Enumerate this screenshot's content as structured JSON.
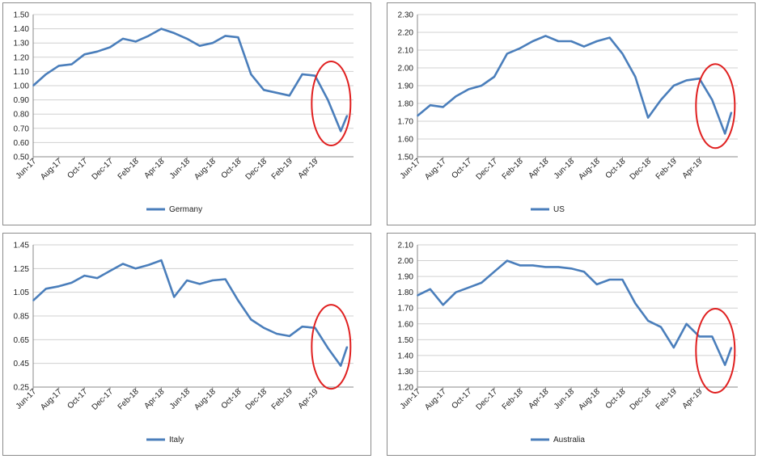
{
  "chart_data": [
    {
      "type": "line",
      "series": [
        {
          "name": "Germany",
          "color": "#4a7ebb"
        }
      ],
      "ylim": [
        0.5,
        1.5
      ],
      "ytick_labels": [
        "0.50",
        "0.60",
        "0.70",
        "0.80",
        "0.90",
        "1.00",
        "1.10",
        "1.20",
        "1.30",
        "1.40",
        "1.50"
      ],
      "xtick_labels": [
        "Jun-17",
        "Aug-17",
        "Oct-17",
        "Dec-17",
        "Feb-18",
        "Apr-18",
        "Jun-18",
        "Aug-18",
        "Oct-18",
        "Dec-18",
        "Feb-19",
        "Apr-19"
      ],
      "grid": true,
      "legend": "bottom",
      "highlight": {
        "shape": "red-ellipse",
        "around": "May-19 to Jun-19 decline"
      },
      "points": [
        [
          "Jun-17",
          1.0
        ],
        [
          "Jul-17",
          1.08
        ],
        [
          "Aug-17",
          1.14
        ],
        [
          "Sep-17",
          1.15
        ],
        [
          "Oct-17",
          1.22
        ],
        [
          "Nov-17",
          1.24
        ],
        [
          "Dec-17",
          1.27
        ],
        [
          "Jan-18",
          1.33
        ],
        [
          "Feb-18",
          1.31
        ],
        [
          "Mar-18",
          1.35
        ],
        [
          "Apr-18",
          1.4
        ],
        [
          "May-18",
          1.37
        ],
        [
          "Jun-18",
          1.33
        ],
        [
          "Jul-18",
          1.28
        ],
        [
          "Aug-18",
          1.3
        ],
        [
          "Sep-18",
          1.35
        ],
        [
          "Oct-18",
          1.34
        ],
        [
          "Nov-18",
          1.08
        ],
        [
          "Dec-18",
          0.97
        ],
        [
          "Jan-19",
          0.95
        ],
        [
          "Feb-19",
          0.93
        ],
        [
          "Mar-19",
          1.08
        ],
        [
          "Apr-19",
          1.07
        ],
        [
          "May-19",
          0.9
        ],
        [
          "Jun-19",
          0.68
        ],
        [
          "Jun-19b",
          0.79
        ]
      ]
    },
    {
      "type": "line",
      "series": [
        {
          "name": "US",
          "color": "#4a7ebb"
        }
      ],
      "ylim": [
        1.5,
        2.3
      ],
      "ytick_labels": [
        "1.50",
        "1.60",
        "1.70",
        "1.80",
        "1.90",
        "2.00",
        "2.10",
        "2.20",
        "2.30"
      ],
      "xtick_labels": [
        "Jun-17",
        "Aug-17",
        "Oct-17",
        "Dec-17",
        "Feb-18",
        "Apr-18",
        "Jun-18",
        "Aug-18",
        "Oct-18",
        "Dec-18",
        "Feb-19",
        "Apr-19"
      ],
      "grid": true,
      "legend": "bottom",
      "highlight": {
        "shape": "red-ellipse",
        "around": "May-19 to Jun-19 decline"
      },
      "points": [
        [
          "Jun-17",
          1.73
        ],
        [
          "Jul-17",
          1.79
        ],
        [
          "Aug-17",
          1.78
        ],
        [
          "Sep-17",
          1.84
        ],
        [
          "Oct-17",
          1.88
        ],
        [
          "Nov-17",
          1.9
        ],
        [
          "Dec-17",
          1.95
        ],
        [
          "Jan-18",
          2.08
        ],
        [
          "Feb-18",
          2.11
        ],
        [
          "Mar-18",
          2.15
        ],
        [
          "Apr-18",
          2.18
        ],
        [
          "May-18",
          2.15
        ],
        [
          "Jun-18",
          2.15
        ],
        [
          "Jul-18",
          2.12
        ],
        [
          "Aug-18",
          2.15
        ],
        [
          "Sep-18",
          2.17
        ],
        [
          "Oct-18",
          2.08
        ],
        [
          "Nov-18",
          1.95
        ],
        [
          "Dec-18",
          1.72
        ],
        [
          "Jan-19",
          1.82
        ],
        [
          "Feb-19",
          1.9
        ],
        [
          "Mar-19",
          1.93
        ],
        [
          "Apr-19",
          1.94
        ],
        [
          "May-19",
          1.82
        ],
        [
          "Jun-19",
          1.63
        ],
        [
          "Jun-19b",
          1.75
        ]
      ]
    },
    {
      "type": "line",
      "series": [
        {
          "name": "Italy",
          "color": "#4a7ebb"
        }
      ],
      "ylim": [
        0.25,
        1.45
      ],
      "ytick_labels": [
        "0.25",
        "0.45",
        "0.65",
        "0.85",
        "1.05",
        "1.25",
        "1.45"
      ],
      "xtick_labels": [
        "Jun-17",
        "Aug-17",
        "Oct-17",
        "Dec-17",
        "Feb-18",
        "Apr-18",
        "Jun-18",
        "Aug-18",
        "Oct-18",
        "Dec-18",
        "Feb-19",
        "Apr-19"
      ],
      "grid": true,
      "legend": "bottom",
      "highlight": {
        "shape": "red-ellipse",
        "around": "May-19 to Jun-19 decline"
      },
      "points": [
        [
          "Jun-17",
          0.98
        ],
        [
          "Jul-17",
          1.08
        ],
        [
          "Aug-17",
          1.1
        ],
        [
          "Sep-17",
          1.13
        ],
        [
          "Oct-17",
          1.19
        ],
        [
          "Nov-17",
          1.17
        ],
        [
          "Dec-17",
          1.23
        ],
        [
          "Jan-18",
          1.29
        ],
        [
          "Feb-18",
          1.25
        ],
        [
          "Mar-18",
          1.28
        ],
        [
          "Apr-18",
          1.32
        ],
        [
          "May-18",
          1.01
        ],
        [
          "Jun-18",
          1.15
        ],
        [
          "Jul-18",
          1.12
        ],
        [
          "Aug-18",
          1.15
        ],
        [
          "Sep-18",
          1.16
        ],
        [
          "Oct-18",
          0.98
        ],
        [
          "Nov-18",
          0.82
        ],
        [
          "Dec-18",
          0.75
        ],
        [
          "Jan-19",
          0.7
        ],
        [
          "Feb-19",
          0.68
        ],
        [
          "Mar-19",
          0.76
        ],
        [
          "Apr-19",
          0.75
        ],
        [
          "May-19",
          0.58
        ],
        [
          "Jun-19",
          0.43
        ],
        [
          "Jun-19b",
          0.59
        ]
      ]
    },
    {
      "type": "line",
      "series": [
        {
          "name": "Australia",
          "color": "#4a7ebb"
        }
      ],
      "ylim": [
        1.2,
        2.1
      ],
      "ytick_labels": [
        "1.20",
        "1.30",
        "1.40",
        "1.50",
        "1.60",
        "1.70",
        "1.80",
        "1.90",
        "2.00",
        "2.10"
      ],
      "xtick_labels": [
        "Jun-17",
        "Aug-17",
        "Oct-17",
        "Dec-17",
        "Feb-18",
        "Apr-18",
        "Jun-18",
        "Aug-18",
        "Oct-18",
        "Dec-18",
        "Feb-19",
        "Apr-19"
      ],
      "grid": true,
      "legend": "bottom",
      "highlight": {
        "shape": "red-ellipse",
        "around": "May-19 to Jun-19 decline"
      },
      "points": [
        [
          "Jun-17",
          1.78
        ],
        [
          "Jul-17",
          1.82
        ],
        [
          "Aug-17",
          1.72
        ],
        [
          "Sep-17",
          1.8
        ],
        [
          "Oct-17",
          1.83
        ],
        [
          "Nov-17",
          1.86
        ],
        [
          "Dec-17",
          1.93
        ],
        [
          "Jan-18",
          2.0
        ],
        [
          "Feb-18",
          1.97
        ],
        [
          "Mar-18",
          1.97
        ],
        [
          "Apr-18",
          1.96
        ],
        [
          "May-18",
          1.96
        ],
        [
          "Jun-18",
          1.95
        ],
        [
          "Jul-18",
          1.93
        ],
        [
          "Aug-18",
          1.85
        ],
        [
          "Sep-18",
          1.88
        ],
        [
          "Oct-18",
          1.88
        ],
        [
          "Nov-18",
          1.73
        ],
        [
          "Dec-18",
          1.62
        ],
        [
          "Jan-19",
          1.58
        ],
        [
          "Feb-19",
          1.45
        ],
        [
          "Mar-19",
          1.6
        ],
        [
          "Apr-19",
          1.52
        ],
        [
          "May-19",
          1.52
        ],
        [
          "Jun-19",
          1.34
        ],
        [
          "Jun-19b",
          1.45
        ]
      ]
    }
  ]
}
